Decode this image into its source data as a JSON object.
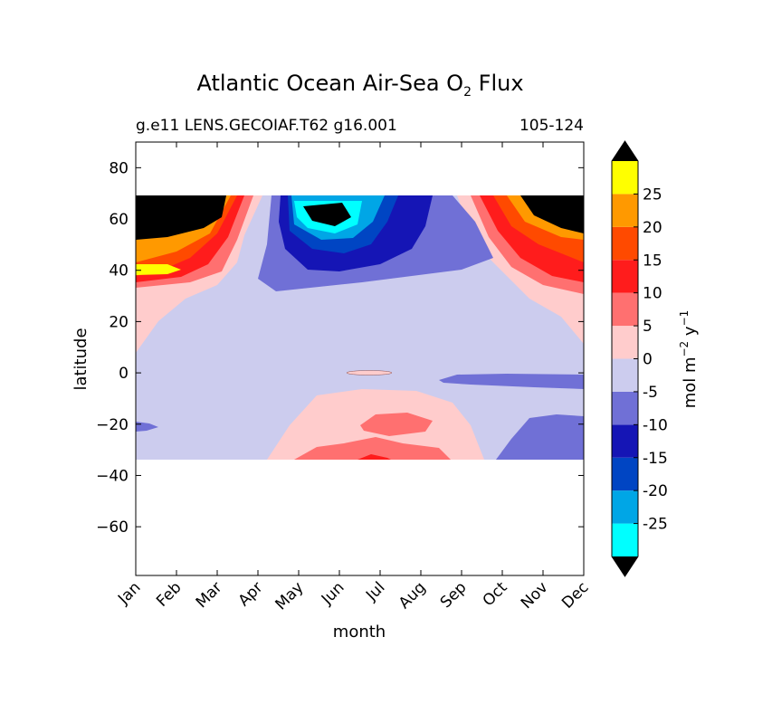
{
  "chart_data": {
    "type": "heatmap",
    "title": "Atlantic Ocean Air-Sea O",
    "title_subscript": "2",
    "title_suffix": "Flux",
    "subtitle_left": "g.e11 LENS.GECOIAF.T62 g16.001",
    "subtitle_right": "105-124",
    "xlabel": "month",
    "ylabel": "latitude",
    "x_ticks": [
      "Jan",
      "Feb",
      "Mar",
      "Apr",
      "May",
      "Jun",
      "Jul",
      "Aug",
      "Sep",
      "Oct",
      "Nov",
      "Dec"
    ],
    "y_ticks": [
      80,
      60,
      40,
      20,
      0,
      -20,
      -40,
      -60
    ],
    "y_tick_labels": [
      "80",
      "60",
      "40",
      "20",
      "0",
      "−20",
      "−40",
      "−60"
    ],
    "ylim": [
      -79,
      90
    ],
    "xlim": [
      1,
      12
    ],
    "data_lat_range": [
      -34,
      69
    ],
    "colorbar": {
      "label_main": "mol m",
      "label_exp1": "−2",
      "label_mid": "y",
      "label_exp2": "−1",
      "levels": [
        -30,
        -25,
        -20,
        -15,
        -10,
        -5,
        0,
        5,
        10,
        15,
        20,
        25,
        30
      ],
      "tick_values": [
        25,
        20,
        15,
        10,
        5,
        0,
        -5,
        -10,
        -15,
        -20,
        -25
      ],
      "tick_labels": [
        "25",
        "20",
        "15",
        "10",
        "5",
        "0",
        "-5",
        "-10",
        "-15",
        "-20",
        "-25"
      ],
      "colors": [
        "#00ffff",
        "#00a6e6",
        "#0045c3",
        "#1515b5",
        "#7070d6",
        "#ccccee",
        "#ffcccc",
        "#ff7070",
        "#ff1c1c",
        "#ff4a00",
        "#ff9900",
        "#ffff00"
      ],
      "under_color": "#000000",
      "over_color": "#000000"
    },
    "grid": false
  }
}
